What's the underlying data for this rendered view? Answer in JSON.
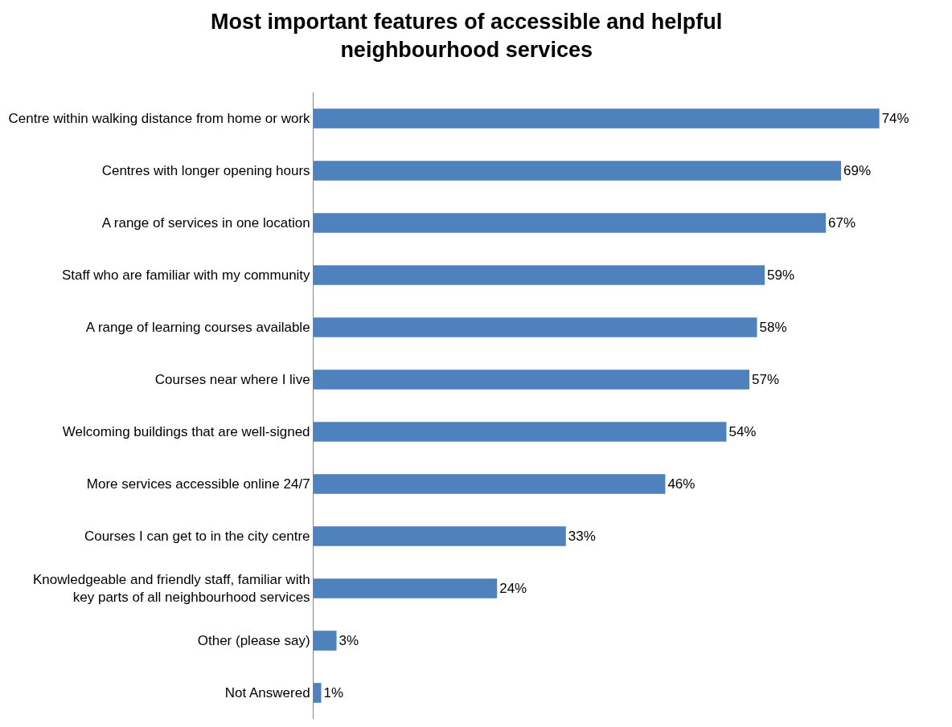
{
  "chart_data": {
    "type": "bar",
    "orientation": "horizontal",
    "title": "Most important features of accessible and helpful neighbourhood services",
    "categories": [
      "Centre within walking distance from home or work",
      "Centres with longer opening hours",
      "A range of services in one location",
      "Staff who are familiar with my community",
      "A range of learning courses available",
      "Courses near where I live",
      "Welcoming buildings that are well-signed",
      "More services accessible online 24/7",
      "Courses I can get to in the city centre",
      "Knowledgeable and friendly staff, familiar with key parts of all neighbourhood services",
      "Other (please say)",
      "Not Answered"
    ],
    "values": [
      74,
      69,
      67,
      59,
      58,
      57,
      54,
      46,
      33,
      24,
      3,
      1
    ],
    "value_labels": [
      "74%",
      "69%",
      "67%",
      "59%",
      "58%",
      "57%",
      "54%",
      "46%",
      "33%",
      "24%",
      "3%",
      "1%"
    ],
    "color": "#4f81bd",
    "tick_labels": "y"
  }
}
